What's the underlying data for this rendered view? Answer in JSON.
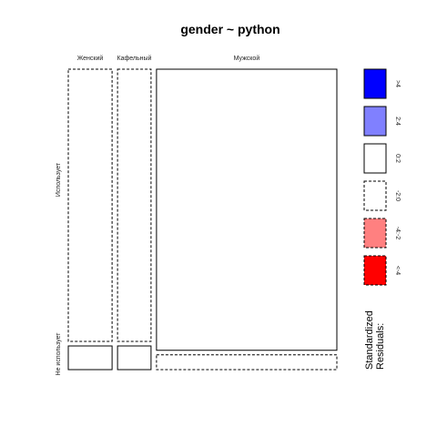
{
  "chart_data": {
    "type": "mosaic",
    "title": "gender ~ python",
    "x_variable": "gender",
    "y_variable": "python",
    "categories_x": [
      "Женский",
      "Кафельный",
      "Мужской"
    ],
    "categories_y": [
      "Использует",
      "Не использует"
    ],
    "column_shares": [
      0.17,
      0.13,
      0.7
    ],
    "row_shares_within_column": [
      [
        0.92,
        0.08
      ],
      [
        0.92,
        0.08
      ],
      [
        0.95,
        0.05
      ]
    ],
    "cells": [
      {
        "x": "Женский",
        "y": "Использует",
        "residual_bin": "-2:0"
      },
      {
        "x": "Женский",
        "y": "Не использует",
        "residual_bin": "0:2"
      },
      {
        "x": "Кафельный",
        "y": "Использует",
        "residual_bin": "-2:0"
      },
      {
        "x": "Кафельный",
        "y": "Не использует",
        "residual_bin": "0:2"
      },
      {
        "x": "Мужской",
        "y": "Использует",
        "residual_bin": "0:2"
      },
      {
        "x": "Мужской",
        "y": "Не использует",
        "residual_bin": "-2:0"
      }
    ],
    "legend": {
      "title_lines": [
        "Standardized",
        "Residuals:"
      ],
      "items": [
        {
          "label": ">4",
          "color": "#0000ff",
          "dashed": false
        },
        {
          "label": "2:4",
          "color": "#8080ff",
          "dashed": false
        },
        {
          "label": "0:2",
          "color": "#ffffff",
          "dashed": false
        },
        {
          "label": "-2:0",
          "color": "#ffffff",
          "dashed": true
        },
        {
          "label": "-4:-2",
          "color": "#ff8080",
          "dashed": true
        },
        {
          "label": "<-4",
          "color": "#ff0000",
          "dashed": true
        }
      ]
    }
  }
}
